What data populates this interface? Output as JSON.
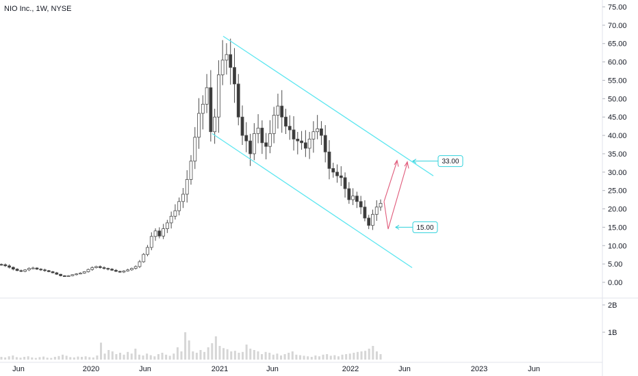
{
  "chart_data": {
    "type": "candlestick",
    "title": "NIO Inc., 1W, NYSE",
    "price_axis": {
      "ticks": [
        "75.00",
        "70.00",
        "65.00",
        "60.00",
        "55.00",
        "50.00",
        "45.00",
        "40.00",
        "35.00",
        "30.00",
        "25.00",
        "20.00",
        "15.00",
        "10.00",
        "5.00",
        "0.00"
      ],
      "ylim": [
        -2,
        77
      ]
    },
    "volume_axis": {
      "ticks": [
        "2B",
        "1B"
      ],
      "ylim": [
        0,
        2.2
      ]
    },
    "time_axis": {
      "ticks": [
        "Jun",
        "2020",
        "Jun",
        "2021",
        "Jun",
        "2022",
        "Jun",
        "2023",
        "Jun"
      ]
    },
    "series": {
      "candles_sampled_close": [
        4.8,
        4.5,
        4.1,
        3.6,
        3.2,
        3.0,
        3.4,
        3.8,
        3.9,
        3.6,
        3.4,
        3.2,
        2.9,
        2.6,
        2.2,
        1.8,
        1.6,
        1.8,
        2.1,
        2.3,
        2.5,
        2.9,
        3.5,
        4.0,
        4.3,
        4.0,
        3.8,
        3.6,
        3.3,
        3.0,
        2.8,
        3.1,
        3.4,
        3.8,
        4.3,
        5.6,
        7.6,
        9.5,
        12.5,
        14.0,
        12.6,
        14.6,
        16.2,
        18.0,
        19.5,
        22.0,
        24.0,
        28.0,
        33.0,
        39.5,
        46.0,
        48.5,
        53.0,
        41.0,
        45.0,
        56.5,
        60.5,
        62.0,
        58.5,
        54.0,
        45.0,
        40.0,
        38.5,
        35.0,
        40.5,
        42.0,
        38.0,
        37.0,
        40.5,
        45.5,
        48.0,
        45.0,
        42.5,
        41.5,
        39.0,
        38.5,
        38.0,
        36.5,
        39.0,
        41.0,
        41.8,
        40.0,
        35.5,
        31.0,
        30.0,
        29.0,
        28.5,
        25.5,
        22.5,
        23.5,
        22.0,
        20.5,
        17.5,
        15.5,
        18.5,
        20.5,
        21.5
      ]
    },
    "volume_bars_billion": [
      0.1,
      0.08,
      0.12,
      0.15,
      0.09,
      0.07,
      0.1,
      0.12,
      0.08,
      0.06,
      0.09,
      0.11,
      0.07,
      0.06,
      0.1,
      0.13,
      0.18,
      0.14,
      0.09,
      0.08,
      0.11,
      0.1,
      0.12,
      0.09,
      0.08,
      0.15,
      0.62,
      0.22,
      0.35,
      0.3,
      0.2,
      0.25,
      0.18,
      0.28,
      0.22,
      0.4,
      0.18,
      0.15,
      0.22,
      0.16,
      0.12,
      0.2,
      0.25,
      0.18,
      0.14,
      0.22,
      0.45,
      0.3,
      1.0,
      0.7,
      0.3,
      0.25,
      0.35,
      0.28,
      0.45,
      0.6,
      0.85,
      0.5,
      0.42,
      0.38,
      0.3,
      0.32,
      0.25,
      0.28,
      0.55,
      0.4,
      0.35,
      0.3,
      0.2,
      0.28,
      0.25,
      0.18,
      0.22,
      0.15,
      0.2,
      0.25,
      0.3,
      0.18,
      0.16,
      0.14,
      0.12,
      0.1,
      0.15,
      0.12,
      0.18,
      0.2,
      0.14,
      0.16,
      0.12,
      0.18,
      0.2,
      0.22,
      0.25,
      0.28,
      0.3,
      0.32,
      0.4,
      0.5,
      0.3,
      0.2
    ],
    "channel": {
      "upper": {
        "from": [
          0.0,
          67.0
        ],
        "to": [
          1.0,
          29.0
        ]
      },
      "lower": {
        "from": [
          0.0,
          40.5
        ],
        "to": [
          1.0,
          4.0
        ]
      }
    },
    "annotations": [
      {
        "label": "33.00",
        "value": 33.0
      },
      {
        "label": "15.00",
        "value": 15.0
      }
    ],
    "colors": {
      "channel": "#5ce6f0",
      "projection": "#e05a7a",
      "callout": "#2ed1db",
      "bull_body": "#ffffff",
      "bear_body": "#3a3a3a",
      "wick": "#4a4a4a",
      "volume": "#d6d6d6",
      "grid_divider": "#e0e3eb"
    }
  }
}
